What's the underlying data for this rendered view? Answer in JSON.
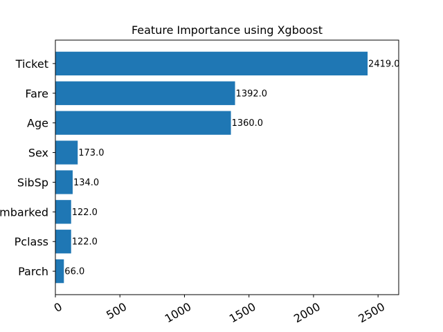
{
  "chart_data": {
    "type": "bar",
    "orientation": "horizontal",
    "title": "Feature Importance using Xgboost",
    "xlabel": "",
    "ylabel": "",
    "categories": [
      "Ticket",
      "Fare",
      "Age",
      "Sex",
      "SibSp",
      "Embarked",
      "Pclass",
      "Parch"
    ],
    "values": [
      2419.0,
      1392.0,
      1360.0,
      173.0,
      134.0,
      122.0,
      122.0,
      66.0
    ],
    "data_labels": [
      "2419.0",
      "1392.0",
      "1360.0",
      "173.0",
      "134.0",
      "122.0",
      "122.0",
      "66.0"
    ],
    "xlim": [
      0,
      2660
    ],
    "xticks": [
      0,
      500,
      1000,
      1500,
      2000,
      2500
    ],
    "xtick_labels": [
      "0",
      "500",
      "1000",
      "1500",
      "2000",
      "2500"
    ],
    "grid": false,
    "bar_color": "#1f77b4"
  }
}
